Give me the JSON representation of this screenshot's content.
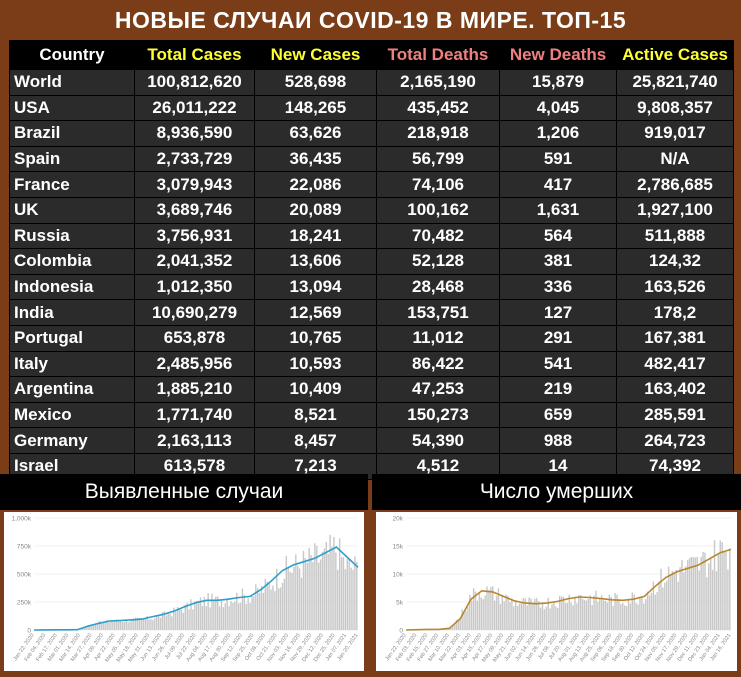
{
  "title": "НОВЫЕ СЛУЧАИ COVID-19 В МИРЕ. ТОП-15",
  "table": {
    "headers": [
      "Country",
      "Total Cases",
      "New Cases",
      "Total Deaths",
      "New Deaths",
      "Active Cases"
    ],
    "rows": [
      [
        "World",
        "100,812,620",
        "528,698",
        "2,165,190",
        "15,879",
        "25,821,740"
      ],
      [
        "USA",
        "26,011,222",
        "148,265",
        "435,452",
        "4,045",
        "9,808,357"
      ],
      [
        "Brazil",
        "8,936,590",
        "63,626",
        "218,918",
        "1,206",
        "919,017"
      ],
      [
        "Spain",
        "2,733,729",
        "36,435",
        "56,799",
        "591",
        "N/A"
      ],
      [
        "France",
        "3,079,943",
        "22,086",
        "74,106",
        "417",
        "2,786,685"
      ],
      [
        "UK",
        "3,689,746",
        "20,089",
        "100,162",
        "1,631",
        "1,927,100"
      ],
      [
        "Russia",
        "3,756,931",
        "18,241",
        "70,482",
        "564",
        "511,888"
      ],
      [
        "Colombia",
        "2,041,352",
        "13,606",
        "52,128",
        "381",
        "124,32"
      ],
      [
        "Indonesia",
        "1,012,350",
        "13,094",
        "28,468",
        "336",
        "163,526"
      ],
      [
        "India",
        "10,690,279",
        "12,569",
        "153,751",
        "127",
        "178,2"
      ],
      [
        "Portugal",
        "653,878",
        "10,765",
        "11,012",
        "291",
        "167,381"
      ],
      [
        "Italy",
        "2,485,956",
        "10,593",
        "86,422",
        "541",
        "482,417"
      ],
      [
        "Argentina",
        "1,885,210",
        "10,409",
        "47,253",
        "219",
        "163,402"
      ],
      [
        "Mexico",
        "1,771,740",
        "8,521",
        "150,273",
        "659",
        "285,591"
      ],
      [
        "Germany",
        "2,163,113",
        "8,457",
        "54,390",
        "988",
        "264,723"
      ],
      [
        "Israel",
        "613,578",
        "7,213",
        "4,512",
        "14",
        "74,392"
      ]
    ]
  },
  "colors": {
    "background": "#7a3d17",
    "header_yellow": "#ffff33",
    "header_pink": "#f08080",
    "cases_line": "#2a9ec9",
    "deaths_line": "#b8862e",
    "bars": "#c8c8c8"
  },
  "chart_data": [
    {
      "type": "bar",
      "title": "Выявленные случаи",
      "yticks": [
        "0",
        "250k",
        "500k",
        "750k",
        "1,000k"
      ],
      "ylim": [
        0,
        1000000
      ],
      "xticks": [
        "Jan 22, 2020",
        "Feb 04, 2020",
        "Feb 17, 2020",
        "Mar 01, 2020",
        "Mar 14, 2020",
        "Mar 27, 2020",
        "Apr 09, 2020",
        "Apr 22, 2020",
        "May 05, 2020",
        "May 18, 2020",
        "May 31, 2020",
        "Jun 13, 2020",
        "Jun 26, 2020",
        "Jul 09, 2020",
        "Jul 22, 2020",
        "Aug 04, 2020",
        "Aug 17, 2020",
        "Aug 30, 2020",
        "Sep 12, 2020",
        "Sep 25, 2020",
        "Oct 08, 2020",
        "Oct 21, 2020",
        "Nov 03, 2020",
        "Nov 16, 2020",
        "Nov 29, 2020",
        "Dec 12, 2020",
        "Dec 25, 2020",
        "Jan 07, 2021",
        "Jan 20, 2021"
      ],
      "series": [
        {
          "values": [
            0,
            1000,
            2000,
            2000,
            3000,
            40000,
            65000,
            80000,
            85000,
            88000,
            95000,
            110000,
            135000,
            165000,
            200000,
            240000,
            265000,
            260000,
            280000,
            300000,
            305000,
            350000,
            420000,
            510000,
            560000,
            600000,
            640000,
            650000,
            740000,
            580000,
            560000
          ]
        },
        {
          "values": [
            0,
            1000,
            2000,
            2000,
            3000,
            35000,
            60000,
            80000,
            85000,
            90000,
            97000,
            120000,
            140000,
            170000,
            210000,
            245000,
            265000,
            265000,
            275000,
            290000,
            300000,
            360000,
            440000,
            530000,
            580000,
            610000,
            640000,
            690000,
            740000,
            650000,
            560000
          ]
        }
      ]
    },
    {
      "type": "bar",
      "title": "Число умерших",
      "yticks": [
        "0",
        "5k",
        "10k",
        "15k",
        "20k"
      ],
      "ylim": [
        0,
        20000
      ],
      "xticks": [
        "Jan 22, 2020",
        "Feb 03, 2020",
        "Feb 15, 2020",
        "Feb 27, 2020",
        "Mar 10, 2020",
        "Mar 22, 2020",
        "Apr 03, 2020",
        "Apr 15, 2020",
        "Apr 27, 2020",
        "May 09, 2020",
        "May 21, 2020",
        "Jun 02, 2020",
        "Jun 14, 2020",
        "Jun 26, 2020",
        "Jul 08, 2020",
        "Jul 20, 2020",
        "Aug 01, 2020",
        "Aug 13, 2020",
        "Aug 25, 2020",
        "Sep 06, 2020",
        "Sep 18, 2020",
        "Sep 30, 2020",
        "Oct 12, 2020",
        "Oct 24, 2020",
        "Nov 05, 2020",
        "Nov 17, 2020",
        "Nov 29, 2020",
        "Dec 11, 2020",
        "Dec 23, 2020",
        "Jan 04, 2021",
        "Jan 16, 2021"
      ],
      "series": [
        {
          "values": [
            0,
            50,
            100,
            100,
            300,
            2500,
            6000,
            7000,
            6500,
            5800,
            5000,
            4800,
            4600,
            4900,
            5200,
            5700,
            5900,
            5700,
            5600,
            5400,
            5300,
            5700,
            6200,
            8000,
            9500,
            10500,
            11000,
            11500,
            12500,
            13800,
            14500
          ]
        },
        {
          "values": [
            0,
            50,
            100,
            100,
            300,
            2000,
            5500,
            7000,
            6800,
            6000,
            5200,
            4800,
            4700,
            4800,
            5100,
            5600,
            5900,
            5800,
            5600,
            5400,
            5300,
            5500,
            6000,
            7800,
            9400,
            10400,
            11000,
            11600,
            12700,
            13800,
            14400
          ]
        }
      ]
    }
  ]
}
